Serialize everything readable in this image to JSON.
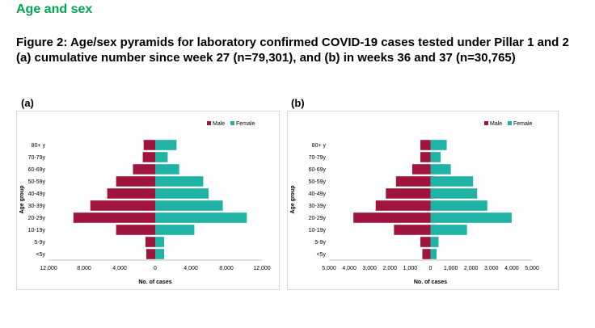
{
  "section_title": "Age and sex",
  "figure_title": "Figure 2: Age/sex pyramids for laboratory confirmed COVID-19 cases tested under Pillar 1 and 2 (a) cumulative number since week 27 (n=79,301),  and (b) in weeks 36 and 37 (n=30,765)",
  "panels": [
    {
      "label": "(a)"
    },
    {
      "label": "(b)"
    }
  ],
  "colors": {
    "male": "#a0153e",
    "female": "#21b2a6",
    "section_title": "#00a651"
  },
  "chart_data": [
    {
      "type": "bar",
      "orientation": "horizontal-pyramid",
      "categories": [
        "<5y",
        "5-9y",
        "10-19y",
        "20-29y",
        "30-39y",
        "40-49y",
        "50-59y",
        "60-69y",
        "70-79y",
        "80+ y"
      ],
      "series": [
        {
          "name": "Male",
          "values": [
            1000,
            1100,
            4400,
            9200,
            7300,
            5400,
            4400,
            2500,
            1400,
            1300
          ]
        },
        {
          "name": "Female",
          "values": [
            1000,
            1000,
            4400,
            10300,
            7600,
            6000,
            5400,
            2700,
            1400,
            2400
          ]
        }
      ],
      "xlabel": "No. of cases",
      "ylabel": "Age group",
      "xlim": [
        -12000,
        12000
      ],
      "ticks": [
        "12,000",
        "8,000",
        "4,000",
        "0",
        "4,000",
        "8,000",
        "12,000"
      ],
      "legend": "top-right"
    },
    {
      "type": "bar",
      "orientation": "horizontal-pyramid",
      "categories": [
        "<5y",
        "5-9y",
        "10-19y",
        "20-29y",
        "30-39y",
        "40-49y",
        "50-59y",
        "60-69y",
        "70-79y",
        "80+ y"
      ],
      "series": [
        {
          "name": "Male",
          "values": [
            400,
            500,
            1800,
            3800,
            2700,
            2200,
            1700,
            900,
            500,
            500
          ]
        },
        {
          "name": "Female",
          "values": [
            300,
            400,
            1800,
            4000,
            2800,
            2300,
            2100,
            1000,
            500,
            800
          ]
        }
      ],
      "xlabel": "No. of cases",
      "ylabel": "Age group",
      "xlim": [
        -5000,
        5000
      ],
      "ticks": [
        "5,000",
        "4,000",
        "3,000",
        "2,000",
        "1,000",
        "0",
        "1,000",
        "2,000",
        "3,000",
        "4,000",
        "5,000"
      ],
      "legend": "top-right"
    }
  ]
}
